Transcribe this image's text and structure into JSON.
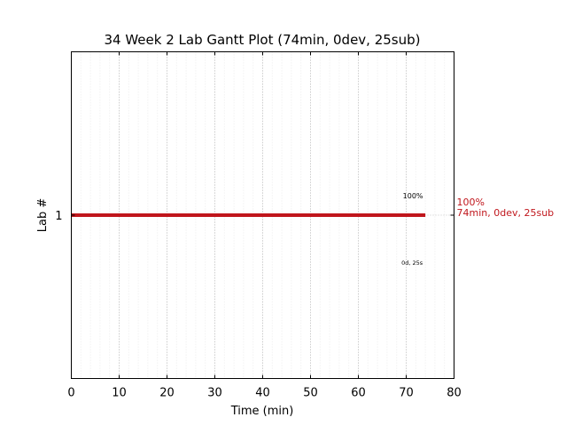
{
  "chart_data": {
    "type": "gantt",
    "title": "34 Week 2 Lab Gantt Plot (74min, 0dev, 25sub)",
    "xlabel": "Time (min)",
    "ylabel": "Lab #",
    "xlim": [
      0,
      80
    ],
    "x_ticks": [
      0,
      10,
      20,
      30,
      40,
      50,
      60,
      70,
      80
    ],
    "grid": true,
    "bars": [
      {
        "lab": "1",
        "start": 0,
        "end": 74,
        "color": "#c0161c",
        "label_above": "100%",
        "label_below": "0d, 25s",
        "side_label_line1": "100%",
        "side_label_line2": "74min, 0dev, 25sub"
      }
    ]
  }
}
